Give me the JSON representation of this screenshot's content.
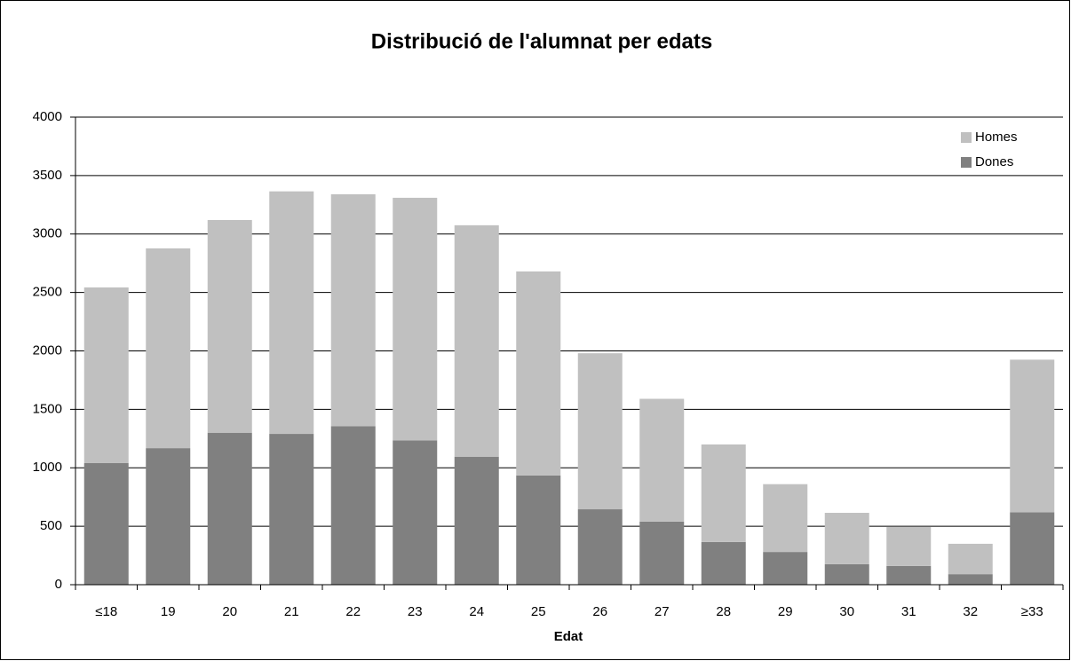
{
  "chart_data": {
    "type": "bar",
    "stacked": true,
    "title": "Distribució de l'alumnat per edats",
    "x_label": "Edat",
    "categories": [
      "≤18",
      "19",
      "20",
      "21",
      "22",
      "23",
      "24",
      "25",
      "26",
      "27",
      "28",
      "29",
      "30",
      "31",
      "32",
      "≥33"
    ],
    "series": [
      {
        "name": "Homes",
        "color": "#c0c0c0",
        "values": [
          1503,
          1709,
          1820,
          2075,
          1985,
          2075,
          1980,
          1745,
          1335,
          1050,
          835,
          580,
          440,
          335,
          260,
          1305
        ]
      },
      {
        "name": "Dones",
        "color": "#808080",
        "values": [
          1040,
          1168,
          1300,
          1290,
          1355,
          1235,
          1095,
          935,
          645,
          540,
          365,
          280,
          175,
          160,
          90,
          620
        ]
      }
    ],
    "ylim": [
      0,
      4000
    ],
    "yticks": [
      0,
      500,
      1000,
      1500,
      2000,
      2500,
      3000,
      3500,
      4000
    ],
    "grid": true,
    "legend": "top-right"
  }
}
